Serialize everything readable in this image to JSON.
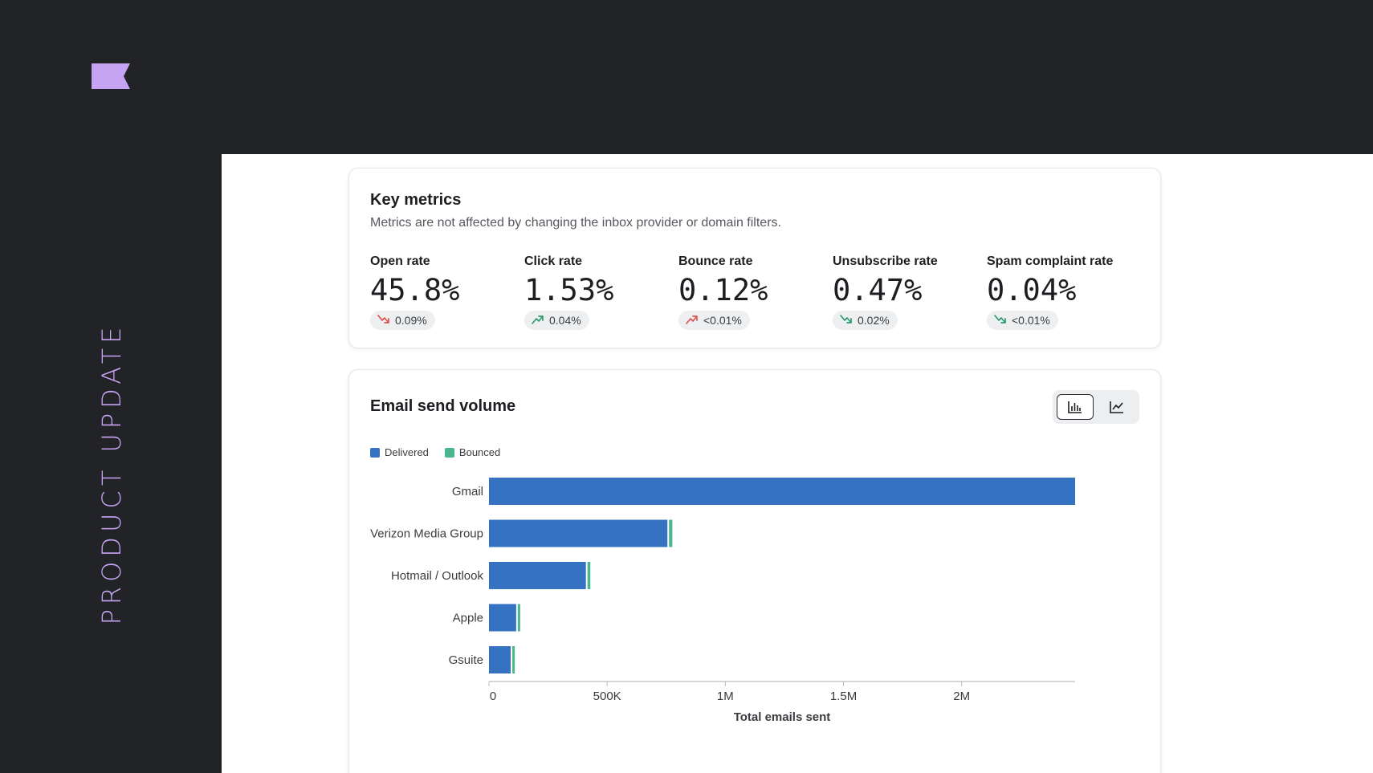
{
  "brand": {
    "accent": "#c6a3f3",
    "side_label": "PRODUCT UPDATE"
  },
  "metrics": {
    "title": "Key metrics",
    "subtitle": "Metrics are not affected by changing the inbox provider or domain filters.",
    "items": [
      {
        "label": "Open rate",
        "value": "45.8%",
        "change": "0.09%",
        "trend": "down",
        "sentiment": "bad"
      },
      {
        "label": "Click rate",
        "value": "1.53%",
        "change": "0.04%",
        "trend": "up",
        "sentiment": "good"
      },
      {
        "label": "Bounce rate",
        "value": "0.12%",
        "change": "<0.01%",
        "trend": "up",
        "sentiment": "bad"
      },
      {
        "label": "Unsubscribe rate",
        "value": "0.47%",
        "change": "0.02%",
        "trend": "down",
        "sentiment": "good"
      },
      {
        "label": "Spam complaint rate",
        "value": "0.04%",
        "change": "<0.01%",
        "trend": "down",
        "sentiment": "good"
      }
    ]
  },
  "volume": {
    "title": "Email send volume",
    "toggle": {
      "active": "bar-chart-icon",
      "options": [
        "bar-chart-icon",
        "line-chart-icon"
      ]
    }
  },
  "colors": {
    "delivered": "#3572c2",
    "bounced": "#4db58d",
    "good": "#2f9a6d",
    "bad": "#d9544f"
  },
  "chart_data": {
    "type": "bar",
    "orientation": "horizontal",
    "stacked": true,
    "categories": [
      "Gmail",
      "Verizon Media Group",
      "Hotmail / Outlook",
      "Apple",
      "Gsuite"
    ],
    "series": [
      {
        "name": "Delivered",
        "values": [
          2480000,
          755000,
          410000,
          115000,
          92000
        ]
      },
      {
        "name": "Bounced",
        "values": [
          0,
          14000,
          12000,
          10000,
          9000
        ]
      }
    ],
    "xticks": [
      {
        "value": 0,
        "label": "0"
      },
      {
        "value": 500000,
        "label": "500K"
      },
      {
        "value": 1000000,
        "label": "1M"
      },
      {
        "value": 1500000,
        "label": "1.5M"
      },
      {
        "value": 2000000,
        "label": "2M"
      }
    ],
    "xlim": [
      0,
      2480000
    ],
    "xlabel": "Total emails sent",
    "legend": "top-left"
  }
}
